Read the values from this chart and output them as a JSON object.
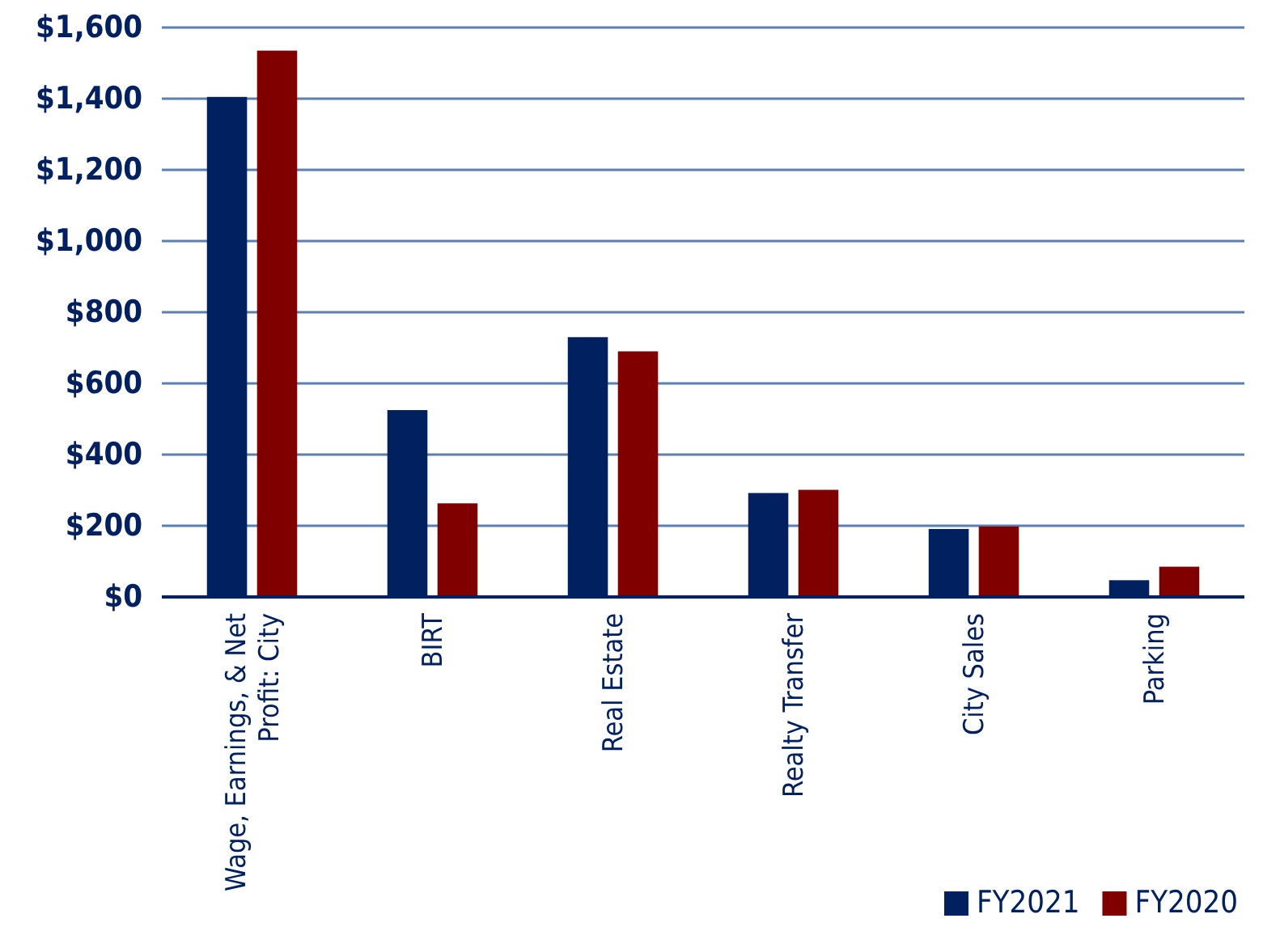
{
  "chart_data": {
    "type": "bar",
    "categories": [
      "Wage, Earnings, & Net Profit: City",
      "BIRT",
      "Real Estate",
      "Realty Transfer",
      "City Sales",
      "Parking"
    ],
    "series": [
      {
        "name": "FY2021",
        "color": "#002060",
        "values": [
          1405,
          525,
          730,
          292,
          191,
          47
        ]
      },
      {
        "name": "FY2020",
        "color": "#800000",
        "values": [
          1535,
          263,
          690,
          301,
          198,
          85
        ]
      }
    ],
    "ylim": [
      0,
      1600
    ],
    "yticks": [
      {
        "value": 0,
        "label": "$0"
      },
      {
        "value": 200,
        "label": "$200"
      },
      {
        "value": 400,
        "label": "$400"
      },
      {
        "value": 600,
        "label": "$600"
      },
      {
        "value": 800,
        "label": "$800"
      },
      {
        "value": 1000,
        "label": "$1,000"
      },
      {
        "value": 1200,
        "label": "$1,200"
      },
      {
        "value": 1400,
        "label": "$1,400"
      },
      {
        "value": 1600,
        "label": "$1,600"
      }
    ],
    "grid": "y",
    "legend": "bottom right"
  }
}
